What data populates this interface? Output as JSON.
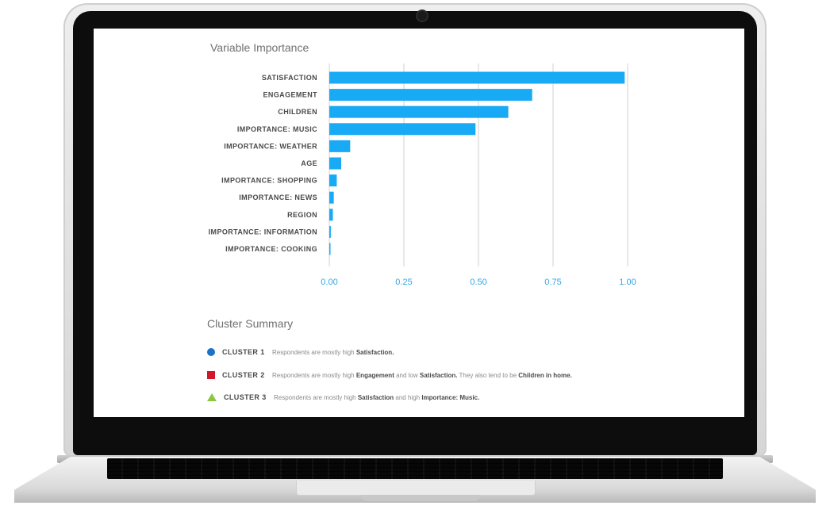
{
  "chart_title": "Variable Importance",
  "chart_data": {
    "type": "bar",
    "orientation": "horizontal",
    "categories": [
      "SATISFACTION",
      "ENGAGEMENT",
      "CHILDREN",
      "IMPORTANCE: MUSIC",
      "IMPORTANCE: WEATHER",
      "AGE",
      "IMPORTANCE: SHOPPING",
      "IMPORTANCE: NEWS",
      "REGION",
      "IMPORTANCE: INFORMATION",
      "IMPORTANCE: COOKING"
    ],
    "values": [
      0.99,
      0.68,
      0.6,
      0.49,
      0.07,
      0.04,
      0.025,
      0.015,
      0.012,
      0.005,
      0.003
    ],
    "xlim": [
      0,
      1
    ],
    "ticks": [
      "0.00",
      "0.25",
      "0.50",
      "0.75",
      "1.00"
    ],
    "tick_values": [
      0,
      0.25,
      0.5,
      0.75,
      1.0
    ],
    "bar_color": "#19aaf5",
    "grid": true
  },
  "cluster_summary": {
    "title": "Cluster Summary",
    "clusters": [
      {
        "name": "CLUSTER 1",
        "marker": "circle",
        "color": "#1a73c8",
        "desc": [
          {
            "t": "Respondents are mostly high "
          },
          {
            "t": "Satisfaction.",
            "b": true
          }
        ]
      },
      {
        "name": "CLUSTER 2",
        "marker": "square",
        "color": "#d3172b",
        "desc": [
          {
            "t": "Respondents are mostly high "
          },
          {
            "t": "Engagement",
            "b": true
          },
          {
            "t": " and low "
          },
          {
            "t": "Satisfaction.",
            "b": true
          },
          {
            "t": " They also tend to be "
          },
          {
            "t": "Children in home.",
            "b": true
          }
        ]
      },
      {
        "name": "CLUSTER 3",
        "marker": "triangle",
        "color": "#8cc63f",
        "desc": [
          {
            "t": "Respondents are mostly high "
          },
          {
            "t": "Satisfaction",
            "b": true
          },
          {
            "t": " and high "
          },
          {
            "t": "Importance: Music.",
            "b": true
          }
        ]
      }
    ]
  }
}
